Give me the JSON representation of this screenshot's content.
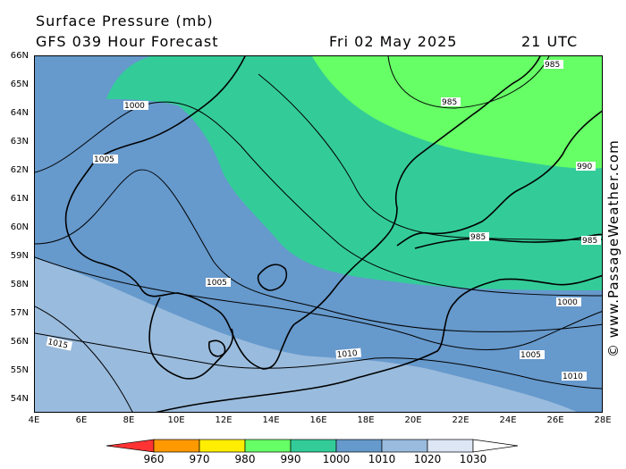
{
  "header": {
    "title": "Surface Pressure (mb)",
    "subtitle": "GFS 039 Hour Forecast",
    "date": "Fri 02 May 2025",
    "time": "21 UTC"
  },
  "map": {
    "lat_labels": [
      "66N",
      "65N",
      "64N",
      "63N",
      "62N",
      "61N",
      "60N",
      "59N",
      "58N",
      "57N",
      "56N",
      "55N",
      "54N"
    ],
    "lon_labels": [
      "4E",
      "6E",
      "8E",
      "10E",
      "12E",
      "14E",
      "16E",
      "18E",
      "20E",
      "22E",
      "24E",
      "26E",
      "28E"
    ],
    "isobar_labels": [
      {
        "text": "985"
      },
      {
        "text": "985"
      },
      {
        "text": "990"
      },
      {
        "text": "985"
      },
      {
        "text": "985"
      },
      {
        "text": "1000"
      },
      {
        "text": "1005"
      },
      {
        "text": "1005"
      },
      {
        "text": "1000"
      },
      {
        "text": "1005"
      },
      {
        "text": "1015"
      },
      {
        "text": "1010"
      },
      {
        "text": "1010"
      }
    ],
    "pressure_colors": {
      "985-990": "#66ff66",
      "990-1000": "#33cc99",
      "1000-1010": "#6699cc",
      "1010-1020": "#99bbdd"
    },
    "copyright": "© www.PassageWeather.com"
  },
  "legend": {
    "labels": [
      "960",
      "970",
      "980",
      "990",
      "1000",
      "1010",
      "1020",
      "1030"
    ],
    "colors": [
      "#ff3333",
      "#ff9900",
      "#ffee00",
      "#66ff66",
      "#33cc99",
      "#6699cc",
      "#99bbdd",
      "#dde6f5",
      "#ffffff"
    ]
  }
}
